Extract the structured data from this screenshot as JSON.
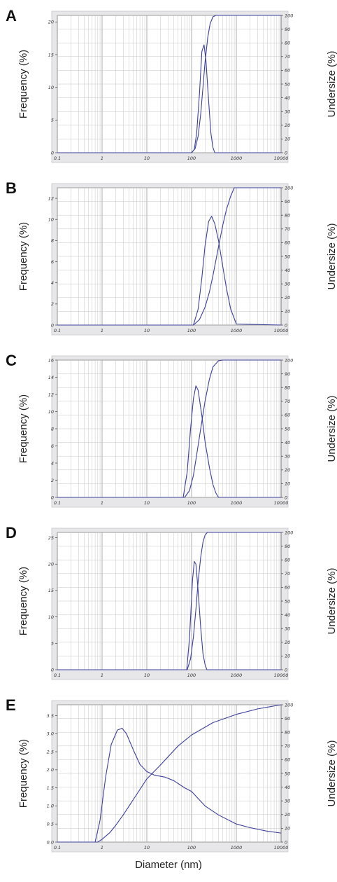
{
  "xlabel": "Diameter (nm)",
  "chart_data": [
    {
      "type": "line",
      "panel": "A",
      "xscale": "log",
      "xlim": [
        0.1,
        10000
      ],
      "x_ticks": [
        "0.1",
        "1",
        "10",
        "100",
        "1000",
        "10000"
      ],
      "ylabel_left": "Frequency (%)",
      "ylabel_right": "Undersize (%)",
      "ylim_left": [
        0,
        21
      ],
      "yticks_left": [
        0,
        5,
        10,
        15,
        20
      ],
      "ylim_right": [
        0,
        100
      ],
      "yticks_right": [
        0,
        10,
        20,
        30,
        40,
        50,
        60,
        70,
        80,
        90,
        100
      ],
      "grid": true,
      "series": [
        {
          "axis": "left",
          "x": [
            0.1,
            100,
            115,
            130,
            150,
            170,
            190,
            210,
            240,
            270,
            300,
            330,
            10000
          ],
          "y": [
            0,
            0,
            0.5,
            3,
            9,
            15.5,
            16.5,
            14,
            8,
            3,
            0.8,
            0,
            0
          ]
        },
        {
          "axis": "right",
          "x": [
            0.1,
            100,
            120,
            140,
            160,
            180,
            200,
            230,
            260,
            300,
            350,
            10000
          ],
          "y": [
            0,
            0,
            3,
            12,
            28,
            48,
            66,
            84,
            94,
            99,
            100,
            100
          ]
        }
      ]
    },
    {
      "type": "line",
      "panel": "B",
      "xscale": "log",
      "xlim": [
        0.1,
        10000
      ],
      "x_ticks": [
        "0.1",
        "1",
        "10",
        "100",
        "1000",
        "10000"
      ],
      "ylabel_left": "Frequency (%)",
      "ylabel_right": "Undersize (%)",
      "ylim_left": [
        0,
        13
      ],
      "yticks_left": [
        0,
        2,
        4,
        6,
        8,
        10,
        12
      ],
      "ylim_right": [
        0,
        100
      ],
      "yticks_right": [
        0,
        10,
        20,
        30,
        40,
        50,
        60,
        70,
        80,
        90,
        100
      ],
      "grid": true,
      "series": [
        {
          "axis": "left",
          "x": [
            0.1,
            110,
            140,
            170,
            200,
            240,
            280,
            330,
            400,
            500,
            600,
            750,
            1000,
            10000
          ],
          "y": [
            0,
            0,
            1.5,
            4.5,
            7.5,
            9.8,
            10.3,
            9.6,
            8,
            5.5,
            3.5,
            1.5,
            0.1,
            0
          ]
        },
        {
          "axis": "right",
          "x": [
            0.1,
            110,
            150,
            200,
            250,
            300,
            400,
            500,
            600,
            750,
            900,
            10000
          ],
          "y": [
            0,
            0,
            4,
            13,
            24,
            36,
            57,
            73,
            84,
            94,
            100,
            100
          ]
        }
      ]
    },
    {
      "type": "line",
      "panel": "C",
      "xscale": "log",
      "xlim": [
        0.1,
        10000
      ],
      "x_ticks": [
        "0.1",
        "1",
        "10",
        "100",
        "1000",
        "10000"
      ],
      "ylabel_left": "Frequency (%)",
      "ylabel_right": "Undersize (%)",
      "ylim_left": [
        0,
        16
      ],
      "yticks_left": [
        0,
        2,
        4,
        6,
        8,
        10,
        12,
        14,
        16
      ],
      "ylim_right": [
        0,
        100
      ],
      "yticks_right": [
        0,
        10,
        20,
        30,
        40,
        50,
        60,
        70,
        80,
        90,
        100
      ],
      "grid": true,
      "series": [
        {
          "axis": "left",
          "x": [
            0.1,
            65,
            80,
            95,
            110,
            125,
            140,
            170,
            200,
            250,
            300,
            350,
            400,
            10000
          ],
          "y": [
            0,
            0,
            3,
            8,
            11.5,
            13,
            12.5,
            9.5,
            6.5,
            3.5,
            1.5,
            0.5,
            0,
            0
          ]
        },
        {
          "axis": "right",
          "x": [
            0.1,
            70,
            90,
            110,
            130,
            160,
            200,
            250,
            300,
            400,
            500,
            600,
            10000
          ],
          "y": [
            0,
            0,
            5,
            16,
            31,
            50,
            70,
            86,
            95,
            99.5,
            100,
            100,
            100
          ]
        }
      ]
    },
    {
      "type": "line",
      "panel": "D",
      "xscale": "log",
      "xlim": [
        0.1,
        10000
      ],
      "x_ticks": [
        "0.1",
        "1",
        "10",
        "100",
        "1000",
        "10000"
      ],
      "ylabel_left": "Frequency (%)",
      "ylabel_right": "Undersize (%)",
      "ylim_left": [
        0,
        26
      ],
      "yticks_left": [
        0,
        5,
        10,
        15,
        20,
        25
      ],
      "ylim_right": [
        0,
        100
      ],
      "yticks_right": [
        0,
        10,
        20,
        30,
        40,
        50,
        60,
        70,
        80,
        90,
        100
      ],
      "grid": true,
      "series": [
        {
          "axis": "left",
          "x": [
            0.1,
            78,
            90,
            105,
            115,
            125,
            140,
            160,
            180,
            200,
            220,
            10000
          ],
          "y": [
            0,
            0,
            6,
            17,
            20.5,
            20,
            15,
            8,
            3,
            1,
            0,
            0
          ]
        },
        {
          "axis": "right",
          "x": [
            0.1,
            80,
            95,
            110,
            125,
            140,
            160,
            180,
            200,
            225,
            10000
          ],
          "y": [
            0,
            0,
            8,
            24,
            44,
            64,
            82,
            93,
            98,
            100,
            100
          ]
        }
      ]
    },
    {
      "type": "line",
      "panel": "E",
      "xscale": "log",
      "xlim": [
        0.1,
        10000
      ],
      "x_ticks": [
        "0.1",
        "1",
        "10",
        "100",
        "1000",
        "10000"
      ],
      "ylabel_left": "Frequency (%)",
      "ylabel_right": "Undersize (%)",
      "ylim_left": [
        0,
        3.8
      ],
      "yticks_left": [
        0.0,
        0.5,
        1.0,
        1.5,
        2.0,
        2.5,
        3.0,
        3.5
      ],
      "ytick_labels_left": [
        "0.0",
        "0.5",
        "1.0",
        "1.5",
        "2.0",
        "2.5",
        "3.0",
        "3.5"
      ],
      "ylim_right": [
        0,
        100
      ],
      "yticks_right": [
        0,
        10,
        20,
        30,
        40,
        50,
        60,
        70,
        80,
        90,
        100
      ],
      "grid": true,
      "series": [
        {
          "axis": "left",
          "x": [
            0.1,
            0.7,
            0.9,
            1.2,
            1.6,
            2.2,
            2.8,
            3.5,
            5,
            7,
            10,
            15,
            25,
            40,
            70,
            100,
            200,
            400,
            1000,
            2000,
            5000,
            10000
          ],
          "y": [
            0,
            0,
            0.6,
            1.8,
            2.7,
            3.1,
            3.15,
            3.0,
            2.55,
            2.15,
            1.95,
            1.85,
            1.8,
            1.7,
            1.5,
            1.4,
            1.0,
            0.75,
            0.5,
            0.4,
            0.3,
            0.25
          ]
        },
        {
          "axis": "right",
          "x": [
            0.1,
            0.8,
            1,
            1.5,
            2,
            3,
            5,
            10,
            20,
            50,
            100,
            300,
            1000,
            3000,
            10000
          ],
          "y": [
            0,
            0,
            2,
            7,
            12,
            20,
            31,
            46,
            56,
            70,
            78,
            87,
            93,
            97,
            100
          ]
        }
      ]
    }
  ]
}
